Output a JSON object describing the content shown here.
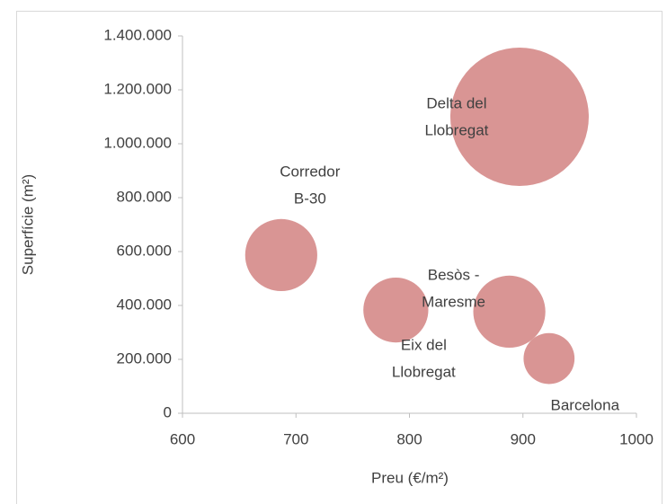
{
  "chart_data": {
    "type": "bubble",
    "x_label": "Preu (€/m²)",
    "y_label": "Superfície (m²)",
    "labels": [
      [
        "Corredor",
        "B-30"
      ],
      [
        "Eix del",
        "Llobregat"
      ],
      [
        "Delta del",
        "Llobregat"
      ],
      [
        "Besòs -",
        "Maresme"
      ],
      [
        "Barcelona"
      ]
    ],
    "x": [
      687,
      788,
      897,
      888,
      923
    ],
    "values": [
      587000,
      383000,
      1100000,
      377000,
      203000
    ],
    "sizes": [
      160,
      130,
      590,
      160,
      80
    ],
    "color": "#d99594",
    "xlim": [
      600,
      1000
    ],
    "xticks": [
      600,
      700,
      800,
      900,
      1000
    ],
    "ylim": [
      0,
      1400000
    ],
    "yticks": [
      0,
      {
        "value": 200000,
        "label": "200.000"
      },
      {
        "value": 400000,
        "label": "400.000"
      },
      {
        "value": 600000,
        "label": "600.000"
      },
      {
        "value": 800000,
        "label": "800.000"
      },
      {
        "value": 1000000,
        "label": "1.000.000"
      },
      {
        "value": 1200000,
        "label": "1.200.000"
      },
      {
        "value": 1400000,
        "label": "1.400.000"
      }
    ],
    "grid": false
  }
}
